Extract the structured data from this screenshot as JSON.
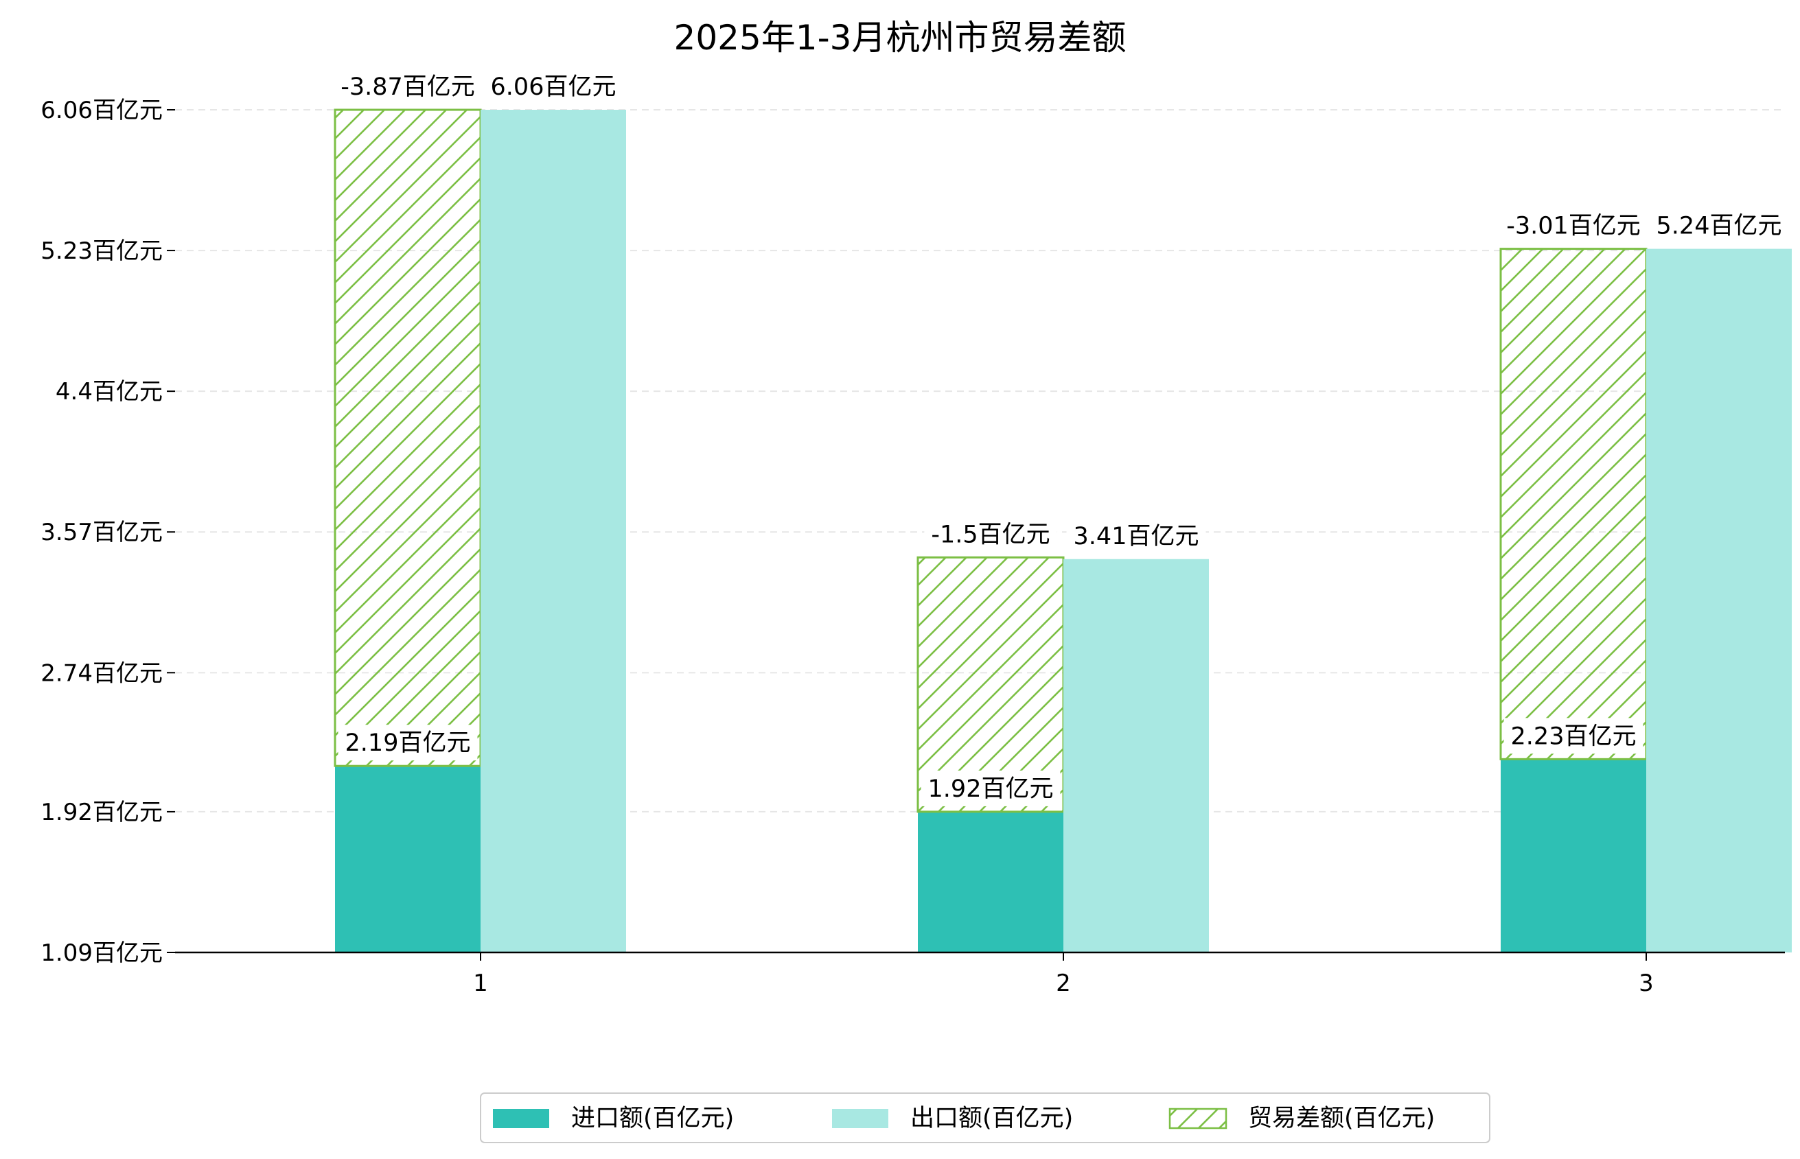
{
  "chart_data": {
    "type": "bar",
    "title": "2025年1-3月杭州市贸易差额",
    "categories": [
      "1",
      "2",
      "3"
    ],
    "unit_suffix": "百亿元",
    "series": [
      {
        "name": "进口额(百亿元)",
        "key": "import",
        "values": [
          2.19,
          1.92,
          2.23
        ],
        "labels": [
          "2.19百亿元",
          "1.92百亿元",
          "2.23百亿元"
        ],
        "color": "#2ec0b4"
      },
      {
        "name": "出口额(百亿元)",
        "key": "export",
        "values": [
          6.06,
          3.41,
          5.24
        ],
        "labels": [
          "6.06百亿元",
          "3.41百亿元",
          "5.24百亿元"
        ],
        "color": "#a8e8e2"
      },
      {
        "name": "贸易差额(百亿元)",
        "key": "balance",
        "values": [
          -3.87,
          -1.5,
          -3.01
        ],
        "labels": [
          "-3.87百亿元",
          "-1.5百亿元",
          "-3.01百亿元"
        ],
        "color": "#7cbf45",
        "hatch": true
      }
    ],
    "yticks": [
      1.09,
      1.92,
      2.74,
      3.57,
      4.4,
      5.23,
      6.06
    ],
    "ytick_labels": [
      "1.09百亿元",
      "1.92百亿元",
      "2.74百亿元",
      "3.57百亿元",
      "4.4百亿元",
      "5.23百亿元",
      "6.06百亿元"
    ],
    "ylim": [
      1.09,
      6.06
    ],
    "grid": "y-dashed",
    "legend": "bottom-center"
  }
}
